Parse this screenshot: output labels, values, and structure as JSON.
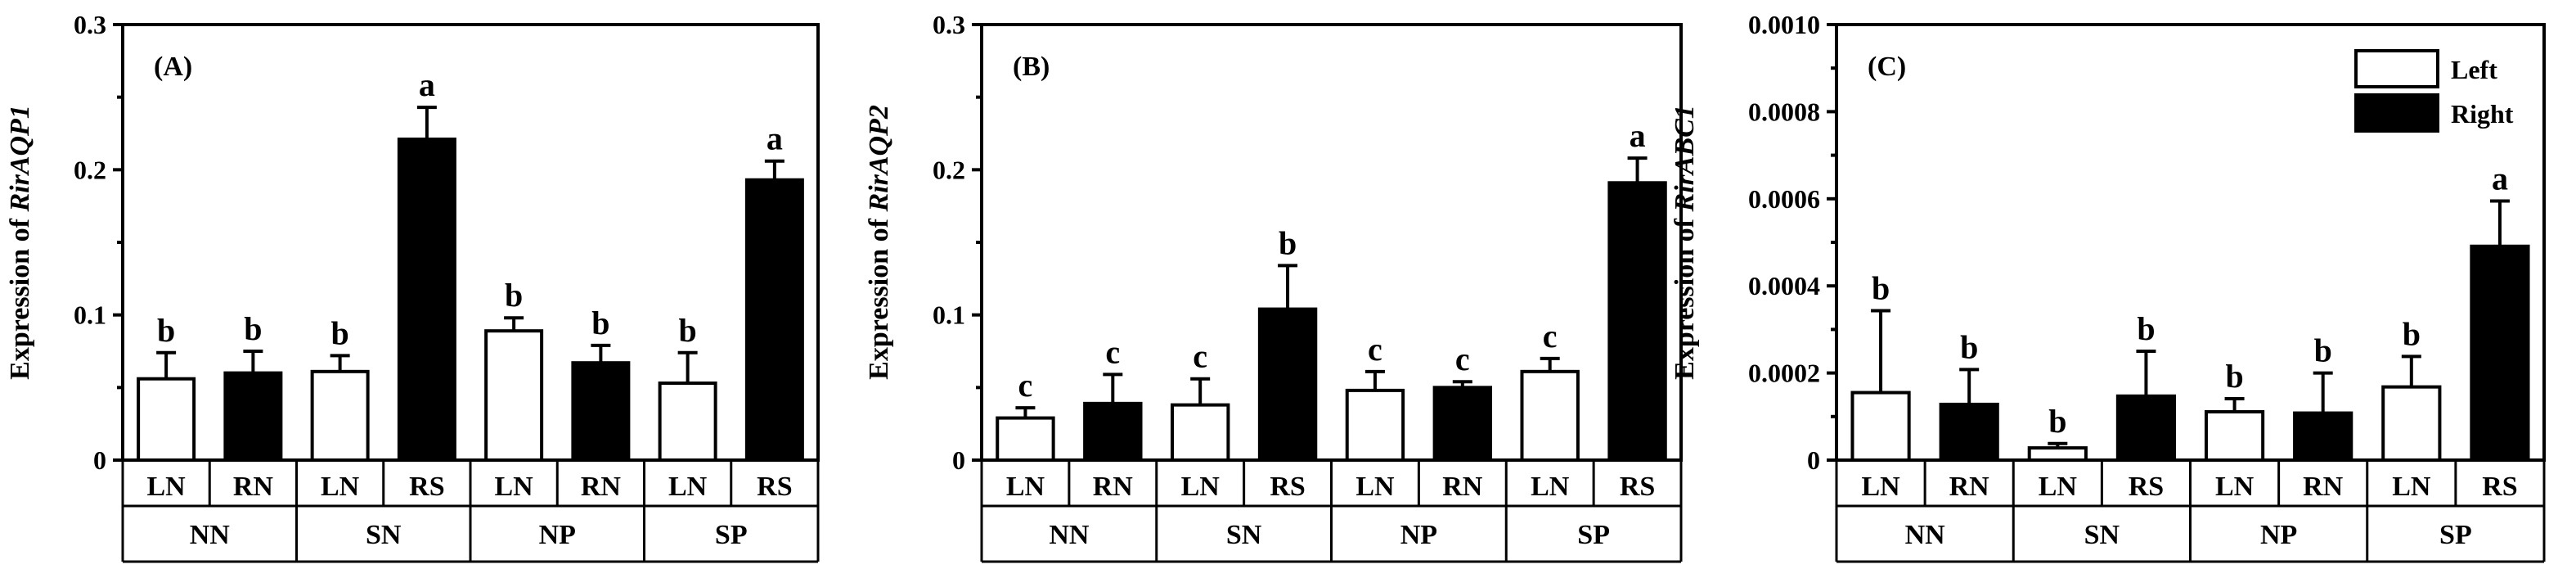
{
  "legend": {
    "entries": [
      {
        "name": "Left",
        "color": "#ffffff"
      },
      {
        "name": "Right",
        "color": "#000000"
      }
    ]
  },
  "chart_data": [
    {
      "type": "bar",
      "panel": "(A)",
      "ylabel_prefix": "Expression of ",
      "ylabel_gene": "RirAQP1",
      "ylim": [
        0,
        0.3
      ],
      "yticks": [
        0,
        0.1,
        0.2,
        0.3
      ],
      "ytick_labels": [
        "0",
        "0.1",
        "0.2",
        "0.3"
      ],
      "groups": [
        "NN",
        "SN",
        "NP",
        "SP"
      ],
      "categories": [
        "LN",
        "RN",
        "LN",
        "RS",
        "LN",
        "RN",
        "LN",
        "RS"
      ],
      "sides": [
        "Left",
        "Right",
        "Left",
        "Right",
        "Left",
        "Right",
        "Left",
        "Right"
      ],
      "values": [
        0.056,
        0.06,
        0.061,
        0.221,
        0.089,
        0.067,
        0.053,
        0.193
      ],
      "errors": [
        0.018,
        0.015,
        0.011,
        0.022,
        0.009,
        0.012,
        0.021,
        0.013
      ],
      "letters": [
        "b",
        "b",
        "b",
        "a",
        "b",
        "b",
        "b",
        "a"
      ]
    },
    {
      "type": "bar",
      "panel": "(B)",
      "ylabel_prefix": "Expression of ",
      "ylabel_gene": "RirAQP2",
      "ylim": [
        0,
        0.3
      ],
      "yticks": [
        0,
        0.1,
        0.2,
        0.3
      ],
      "ytick_labels": [
        "0",
        "0.1",
        "0.2",
        "0.3"
      ],
      "groups": [
        "NN",
        "SN",
        "NP",
        "SP"
      ],
      "categories": [
        "LN",
        "RN",
        "LN",
        "RS",
        "LN",
        "RN",
        "LN",
        "RS"
      ],
      "sides": [
        "Left",
        "Right",
        "Left",
        "Right",
        "Left",
        "Right",
        "Left",
        "Right"
      ],
      "values": [
        0.029,
        0.039,
        0.038,
        0.104,
        0.048,
        0.05,
        0.061,
        0.191
      ],
      "errors": [
        0.007,
        0.02,
        0.018,
        0.03,
        0.013,
        0.004,
        0.009,
        0.017
      ],
      "letters": [
        "c",
        "c",
        "c",
        "b",
        "c",
        "c",
        "c",
        "a"
      ]
    },
    {
      "type": "bar",
      "panel": "(C)",
      "ylabel_prefix": "Expression of ",
      "ylabel_gene": "RirABC1",
      "ylim": [
        0,
        0.001
      ],
      "yticks": [
        0,
        0.0002,
        0.0004,
        0.0006,
        0.0008,
        0.001
      ],
      "ytick_labels": [
        "0",
        "0.0002",
        "0.0004",
        "0.0006",
        "0.0008",
        "0.0010"
      ],
      "groups": [
        "NN",
        "SN",
        "NP",
        "SP"
      ],
      "categories": [
        "LN",
        "RN",
        "LN",
        "RS",
        "LN",
        "RN",
        "LN",
        "RS"
      ],
      "sides": [
        "Left",
        "Right",
        "Left",
        "Right",
        "Left",
        "Right",
        "Left",
        "Right"
      ],
      "values": [
        0.000155,
        0.000128,
        2.8e-05,
        0.000147,
        0.000111,
        0.000108,
        0.000168,
        0.000491
      ],
      "errors": [
        0.000188,
        8e-05,
        1e-05,
        0.000103,
        3e-05,
        9.2e-05,
        7e-05,
        0.000104
      ],
      "letters": [
        "b",
        "b",
        "b",
        "b",
        "b",
        "b",
        "b",
        "a"
      ]
    }
  ]
}
